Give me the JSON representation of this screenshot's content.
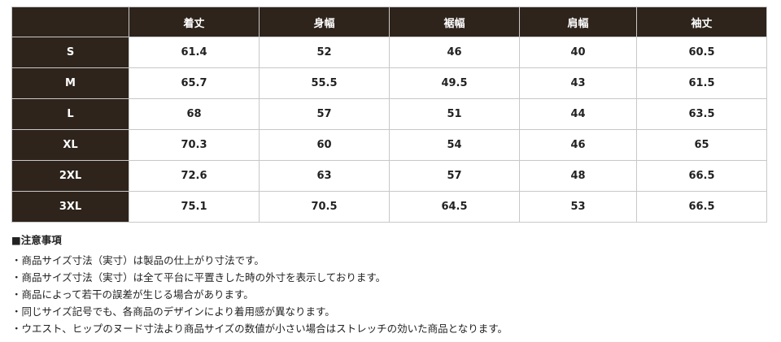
{
  "table": {
    "columns": [
      "着丈",
      "身幅",
      "裾幅",
      "肩幅",
      "袖丈"
    ],
    "rows": [
      [
        "S",
        61.4,
        52,
        46,
        40,
        60.5
      ],
      [
        "M",
        65.7,
        55.5,
        49.5,
        43,
        61.5
      ],
      [
        "L",
        68,
        57,
        51,
        44,
        63.5
      ],
      [
        "XL",
        70.3,
        60,
        54,
        46,
        65
      ],
      [
        "2XL",
        72.6,
        63,
        57,
        48,
        66.5
      ],
      [
        "3XL",
        75.1,
        70.5,
        64.5,
        53,
        66.5
      ]
    ]
  },
  "notes": {
    "title": "■注意事項",
    "items": [
      "・商品サイズ寸法（実寸）は製品の仕上がり寸法です。",
      "・商品サイズ寸法（実寸）は全て平台に平置きした時の外寸を表示しております。",
      "・商品によって若干の誤差が生じる場合があります。",
      "・同じサイズ記号でも、各商品のデザインにより着用感が異なります。",
      "・ウエスト、ヒップのヌード寸法より商品サイズの数値が小さい場合はストレッチの効いた商品となります。"
    ]
  }
}
